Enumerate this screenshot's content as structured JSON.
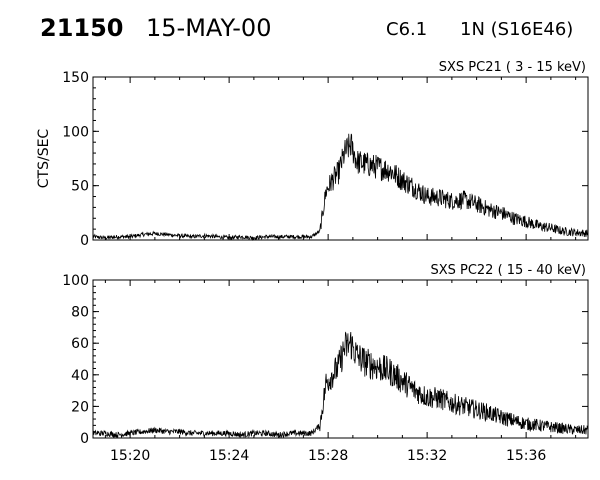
{
  "header": {
    "event_id": "21150",
    "date": "15-MAY-00",
    "flare_class": "C6.1",
    "location": "1N (S16E46)"
  },
  "chart_data": [
    {
      "type": "line",
      "title": "SXS PC21  (  3 - 15 keV)",
      "ylabel": "CTS/SEC",
      "xlabel": "",
      "ylim": [
        0,
        150
      ],
      "yticks": [
        0,
        50,
        100,
        150
      ],
      "xlim": [
        "15:18:30",
        "15:38:30"
      ],
      "xticks": [
        "15:20",
        "15:24",
        "15:28",
        "15:32",
        "15:36"
      ],
      "series": [
        {
          "values": [
            [
              "15:18:30",
              3
            ],
            [
              "15:19:00",
              2
            ],
            [
              "15:19:30",
              3
            ],
            [
              "15:20:00",
              3
            ],
            [
              "15:20:30",
              5
            ],
            [
              "15:21:00",
              6
            ],
            [
              "15:21:30",
              5
            ],
            [
              "15:22:00",
              4
            ],
            [
              "15:22:30",
              3
            ],
            [
              "15:23:00",
              4
            ],
            [
              "15:23:30",
              3
            ],
            [
              "15:24:00",
              2
            ],
            [
              "15:24:30",
              3
            ],
            [
              "15:25:00",
              2
            ],
            [
              "15:25:30",
              3
            ],
            [
              "15:26:00",
              3
            ],
            [
              "15:26:30",
              3
            ],
            [
              "15:27:00",
              3
            ],
            [
              "15:27:20",
              3
            ],
            [
              "15:27:40",
              8
            ],
            [
              "15:27:55",
              45
            ],
            [
              "15:28:10",
              55
            ],
            [
              "15:28:25",
              62
            ],
            [
              "15:28:40",
              80
            ],
            [
              "15:28:55",
              88
            ],
            [
              "15:29:10",
              72
            ],
            [
              "15:29:30",
              70
            ],
            [
              "15:30:00",
              67
            ],
            [
              "15:30:30",
              64
            ],
            [
              "15:31:00",
              55
            ],
            [
              "15:31:30",
              48
            ],
            [
              "15:32:00",
              40
            ],
            [
              "15:32:30",
              39
            ],
            [
              "15:33:00",
              36
            ],
            [
              "15:33:30",
              37
            ],
            [
              "15:34:00",
              33
            ],
            [
              "15:34:30",
              28
            ],
            [
              "15:35:00",
              25
            ],
            [
              "15:35:30",
              20
            ],
            [
              "15:36:00",
              17
            ],
            [
              "15:36:30",
              13
            ],
            [
              "15:37:00",
              11
            ],
            [
              "15:37:30",
              8
            ],
            [
              "15:38:00",
              7
            ],
            [
              "15:38:30",
              6
            ]
          ]
        }
      ]
    },
    {
      "type": "line",
      "title": "SXS PC22  ( 15 - 40 keV)",
      "ylabel": "",
      "xlabel": "",
      "ylim": [
        0,
        100
      ],
      "yticks": [
        0,
        20,
        40,
        60,
        80,
        100
      ],
      "xlim": [
        "15:18:30",
        "15:38:30"
      ],
      "xticks": [
        "15:20",
        "15:24",
        "15:28",
        "15:32",
        "15:36"
      ],
      "series": [
        {
          "values": [
            [
              "15:18:30",
              3
            ],
            [
              "15:19:00",
              3
            ],
            [
              "15:19:30",
              2
            ],
            [
              "15:20:00",
              3
            ],
            [
              "15:20:30",
              4
            ],
            [
              "15:21:00",
              5
            ],
            [
              "15:21:30",
              4
            ],
            [
              "15:22:00",
              4
            ],
            [
              "15:22:30",
              3
            ],
            [
              "15:23:00",
              3
            ],
            [
              "15:23:30",
              3
            ],
            [
              "15:24:00",
              3
            ],
            [
              "15:24:30",
              2
            ],
            [
              "15:25:00",
              3
            ],
            [
              "15:25:30",
              3
            ],
            [
              "15:26:00",
              2
            ],
            [
              "15:26:30",
              3
            ],
            [
              "15:27:00",
              3
            ],
            [
              "15:27:20",
              3
            ],
            [
              "15:27:40",
              8
            ],
            [
              "15:27:55",
              35
            ],
            [
              "15:28:10",
              40
            ],
            [
              "15:28:25",
              45
            ],
            [
              "15:28:40",
              57
            ],
            [
              "15:28:55",
              60
            ],
            [
              "15:29:10",
              52
            ],
            [
              "15:29:30",
              48
            ],
            [
              "15:30:00",
              45
            ],
            [
              "15:30:30",
              42
            ],
            [
              "15:31:00",
              36
            ],
            [
              "15:31:30",
              30
            ],
            [
              "15:32:00",
              26
            ],
            [
              "15:32:30",
              25
            ],
            [
              "15:33:00",
              22
            ],
            [
              "15:33:30",
              20
            ],
            [
              "15:34:00",
              18
            ],
            [
              "15:34:30",
              16
            ],
            [
              "15:35:00",
              13
            ],
            [
              "15:35:30",
              11
            ],
            [
              "15:36:00",
              9
            ],
            [
              "15:36:30",
              8
            ],
            [
              "15:37:00",
              7
            ],
            [
              "15:37:30",
              6
            ],
            [
              "15:38:00",
              5
            ],
            [
              "15:38:30",
              5
            ]
          ]
        }
      ]
    }
  ]
}
